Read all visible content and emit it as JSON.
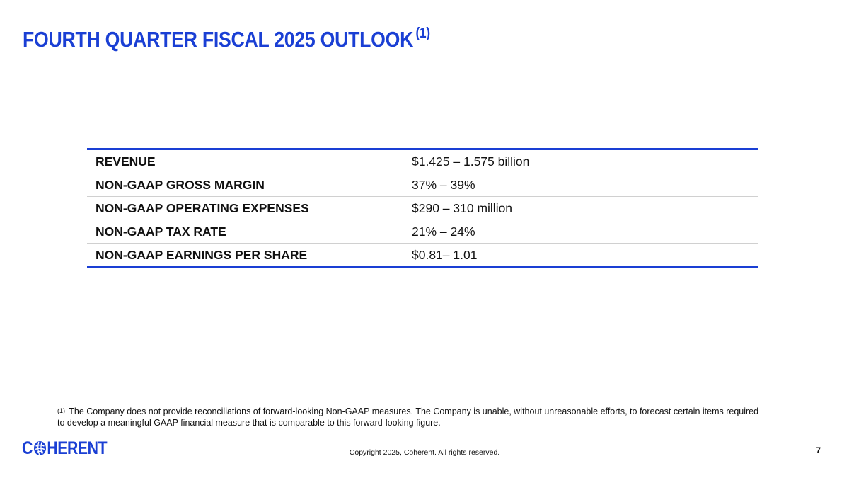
{
  "slide": {
    "title": "FOURTH QUARTER FISCAL 2025 OUTLOOK",
    "title_footnote_mark": "(1)"
  },
  "outlook": {
    "rows": [
      {
        "metric": "REVENUE",
        "value": "$1.425 – 1.575 billion"
      },
      {
        "metric": "NON-GAAP GROSS MARGIN",
        "value": "37% – 39%"
      },
      {
        "metric": "NON-GAAP OPERATING EXPENSES",
        "value": "$290 – 310 million"
      },
      {
        "metric": "NON-GAAP TAX RATE",
        "value": "21% – 24%"
      },
      {
        "metric": "NON-GAAP EARNINGS PER SHARE",
        "value": "$0.81– 1.01"
      }
    ]
  },
  "footnote": {
    "mark": "(1)",
    "text": "The Company does not provide reconciliations of forward-looking Non-GAAP measures. The Company is unable, without unreasonable efforts, to forecast certain items required to develop a meaningful GAAP financial measure that is comparable to this forward-looking figure."
  },
  "footer": {
    "logo_text_left": "C",
    "logo_text_right": "HERENT",
    "logo_icon": "globe-o-icon",
    "copyright": "Copyright 2025, Coherent. All rights reserved.",
    "page_number": "7"
  },
  "colors": {
    "brand_blue": "#1a3fd4",
    "text": "#111111",
    "row_divider": "#d0d0d0"
  }
}
